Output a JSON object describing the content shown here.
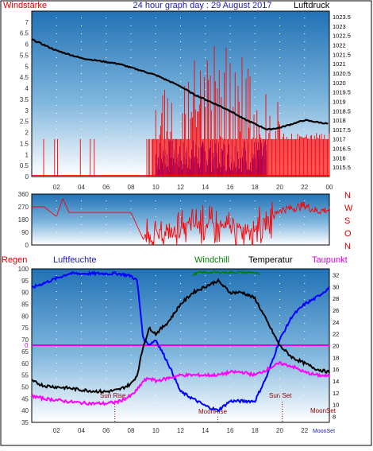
{
  "header": {
    "title": "24 hour graph day : 29 August 2017",
    "left_label": "Windstärke",
    "right_label": "Luftdruck"
  },
  "labels": {
    "regen": "Regen",
    "luftfeuchte": "Luftfeuchte",
    "windchill": "Windchill",
    "temperatur": "Temperatur",
    "taupunkt": "Taupunkt",
    "sun_rise": "Sun Rise",
    "sun_set": "Sun Set",
    "moon_rise": "MoonRise",
    "moon_set": "MoonSet",
    "moon_set_2": "MoonSet",
    "compass": [
      "N",
      "W",
      "S",
      "O",
      "N"
    ],
    "rain_zero": "0"
  },
  "colors": {
    "wind_gust": "#ff0000",
    "wind_avg": "#0000ff",
    "pressure": "#000000",
    "direction": "#ff0000",
    "humidity": "#0000ff",
    "temperature": "#000000",
    "windchill": "#008000",
    "dewpoint": "#ff00ff",
    "label_red": "#e00000",
    "sky_top": "#2276bb",
    "sky_bottom": "#ffffff"
  },
  "chart_data": [
    {
      "type": "line",
      "title": "24 hour graph day : 29 August 2017",
      "x_tick_labels": [
        "02",
        "04",
        "06",
        "08",
        "10",
        "12",
        "14",
        "16",
        "18",
        "20",
        "22",
        "00"
      ],
      "y_left_ticks": [
        "0",
        "0.5",
        "1",
        "1.5",
        "2",
        "2.5",
        "3",
        "3.5",
        "4",
        "4.5",
        "5",
        "5.5",
        "6",
        "6.5",
        "7"
      ],
      "y_left_range": [
        0,
        7.5
      ],
      "y_right_ticks": [
        "1015.5",
        "1016",
        "1016.5",
        "1017",
        "1017.5",
        "1018",
        "1018.5",
        "1019",
        "1019.5",
        "1020",
        "1020.5",
        "1021",
        "1021.5",
        "1022",
        "1022.5",
        "1023",
        "1023.5"
      ],
      "y_right_range": [
        1015.0,
        1023.8
      ],
      "series": [
        {
          "name": "Windstärke",
          "axis": "left",
          "values_hourly_max": [
            1.7,
            1.7,
            1.7,
            1.7,
            1.7,
            1.7,
            1.7,
            1.7,
            1.7,
            1.7,
            5.5,
            5.5,
            5.5,
            5.5,
            7.5,
            6.0,
            5.5,
            5.5,
            4.0,
            3.8,
            2.0,
            2.0,
            2.0,
            2.0
          ]
        },
        {
          "name": "Luftdruck",
          "axis": "right",
          "x": [
            0,
            1,
            2,
            3,
            4,
            5,
            6,
            7,
            8,
            9,
            10,
            11,
            12,
            13,
            14,
            15,
            16,
            17,
            18,
            19,
            20,
            21,
            22,
            23,
            24
          ],
          "values": [
            1022.3,
            1022.0,
            1021.7,
            1021.5,
            1021.3,
            1021.2,
            1021.1,
            1021.0,
            1020.8,
            1020.6,
            1020.4,
            1020.1,
            1019.8,
            1019.4,
            1019.1,
            1018.8,
            1018.5,
            1018.1,
            1017.8,
            1017.5,
            1017.6,
            1017.8,
            1018.0,
            1017.9,
            1017.8
          ]
        }
      ]
    },
    {
      "type": "line",
      "y_ticks": [
        "360",
        "270",
        "180",
        "90",
        "0"
      ],
      "y_range": [
        0,
        360
      ],
      "series": [
        {
          "name": "Windrichtung",
          "x": [
            0,
            1,
            2,
            2.5,
            3,
            4,
            5,
            6,
            7,
            8,
            9,
            10,
            11,
            12,
            13,
            14,
            15,
            16,
            17,
            18,
            19,
            20,
            21,
            22,
            23,
            24
          ],
          "values": [
            270,
            270,
            200,
            330,
            230,
            230,
            230,
            230,
            230,
            230,
            40,
            60,
            80,
            110,
            140,
            150,
            130,
            120,
            110,
            130,
            150,
            250,
            260,
            280,
            240,
            250
          ]
        }
      ]
    },
    {
      "type": "line",
      "y_left_ticks": [
        "35",
        "40",
        "45",
        "50",
        "55",
        "60",
        "65",
        "70",
        "75",
        "80",
        "85",
        "90",
        "95",
        "100"
      ],
      "y_left_range": [
        35,
        100
      ],
      "y_right_ticks": [
        "8",
        "10",
        "12",
        "14",
        "16",
        "18",
        "20",
        "22",
        "24",
        "26",
        "28",
        "30",
        "32"
      ],
      "y_right_range": [
        7,
        33
      ],
      "series": [
        {
          "name": "Luftfeuchte",
          "axis": "left",
          "x": [
            0,
            1,
            2,
            3,
            4,
            5,
            6,
            7,
            8,
            8.5,
            9,
            9.5,
            10,
            11,
            12,
            13,
            14,
            15,
            16,
            17,
            18,
            19,
            20,
            21,
            22,
            23,
            24
          ],
          "values": [
            92,
            94,
            96,
            98,
            98,
            98,
            98,
            98,
            97,
            95,
            70,
            68,
            70,
            60,
            48,
            45,
            42,
            40,
            44,
            44,
            44,
            55,
            70,
            80,
            85,
            88,
            92
          ]
        },
        {
          "name": "Temperatur",
          "axis": "right",
          "x": [
            0,
            1,
            2,
            3,
            4,
            5,
            6,
            7,
            8,
            8.5,
            9,
            9.5,
            10,
            11,
            12,
            13,
            14,
            15,
            16,
            17,
            18,
            19,
            20,
            21,
            22,
            23,
            24
          ],
          "values": [
            14,
            13.2,
            13,
            12.8,
            12.5,
            12.3,
            12.2,
            12.5,
            13.5,
            15,
            20,
            23,
            22,
            24,
            27,
            29,
            30,
            31,
            29,
            29,
            28,
            24,
            20,
            18,
            17,
            16,
            15.5
          ]
        },
        {
          "name": "Windchill",
          "axis": "right",
          "x": [
            13,
            13.5,
            14,
            15,
            16,
            17,
            18,
            18.4
          ],
          "values": [
            32,
            32.4,
            32.4,
            32.4,
            32.4,
            32.4,
            32.4,
            32
          ]
        },
        {
          "name": "Taupunkt",
          "axis": "right",
          "x": [
            0,
            1,
            2,
            3,
            4,
            5,
            6,
            7,
            8,
            8.5,
            9,
            9.5,
            10,
            11,
            12,
            13,
            14,
            15,
            16,
            17,
            18,
            19,
            20,
            21,
            22,
            23,
            24
          ],
          "values": [
            11.5,
            11,
            10.8,
            10.5,
            10.3,
            10.2,
            10.2,
            10.5,
            11.5,
            12.5,
            14,
            14.5,
            14,
            14.5,
            15,
            15,
            15,
            15,
            15.5,
            15.5,
            15,
            16,
            17,
            16.5,
            15.5,
            15,
            14.8
          ]
        }
      ]
    }
  ]
}
